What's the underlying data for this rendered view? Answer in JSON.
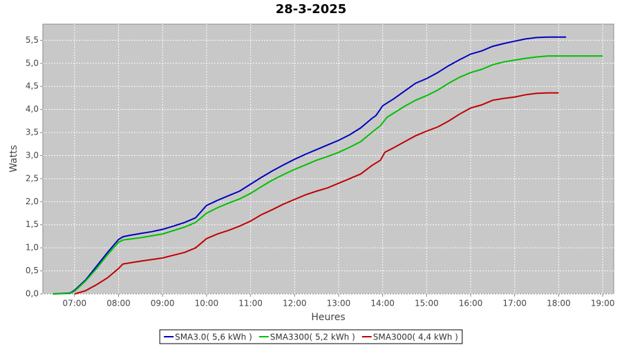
{
  "chart_data": {
    "type": "line",
    "title": "28-3-2025",
    "xlabel": "Heures",
    "ylabel": "Watts",
    "xlim": [
      6.28,
      19.25
    ],
    "ylim": [
      0,
      5.85
    ],
    "grid": true,
    "legend": "bottom",
    "xticks": [
      {
        "value": 7,
        "label": "07:00"
      },
      {
        "value": 8,
        "label": "08:00"
      },
      {
        "value": 9,
        "label": "09:00"
      },
      {
        "value": 10,
        "label": "10:00"
      },
      {
        "value": 11,
        "label": "11:00"
      },
      {
        "value": 12,
        "label": "12:00"
      },
      {
        "value": 13,
        "label": "13:00"
      },
      {
        "value": 14,
        "label": "14:00"
      },
      {
        "value": 15,
        "label": "15:00"
      },
      {
        "value": 16,
        "label": "16:00"
      },
      {
        "value": 17,
        "label": "17:00"
      },
      {
        "value": 18,
        "label": "18:00"
      },
      {
        "value": 19,
        "label": "19:00"
      }
    ],
    "yticks": [
      {
        "value": 0,
        "label": "0,0"
      },
      {
        "value": 0.5,
        "label": "0,5"
      },
      {
        "value": 1,
        "label": "1,0"
      },
      {
        "value": 1.5,
        "label": "1,5"
      },
      {
        "value": 2,
        "label": "2,0"
      },
      {
        "value": 2.5,
        "label": "2,5"
      },
      {
        "value": 3,
        "label": "3,0"
      },
      {
        "value": 3.5,
        "label": "3,5"
      },
      {
        "value": 4,
        "label": "4,0"
      },
      {
        "value": 4.5,
        "label": "4,5"
      },
      {
        "value": 5,
        "label": "5,0"
      },
      {
        "value": 5.5,
        "label": "5,5"
      }
    ],
    "series": [
      {
        "name": "SMA3.0( 5,6 kWh )",
        "color": "#0000c0",
        "x": [
          6.5,
          6.9,
          7.0,
          7.25,
          7.5,
          7.75,
          8.0,
          8.1,
          8.25,
          8.5,
          8.75,
          9.0,
          9.25,
          9.5,
          9.75,
          10.0,
          10.25,
          10.5,
          10.75,
          11.0,
          11.25,
          11.5,
          11.75,
          12.0,
          12.25,
          12.5,
          12.75,
          13.0,
          13.25,
          13.5,
          13.75,
          13.85,
          14.0,
          14.25,
          14.5,
          14.75,
          15.0,
          15.25,
          15.5,
          15.75,
          16.0,
          16.25,
          16.5,
          16.75,
          17.0,
          17.25,
          17.5,
          17.75,
          18.17
        ],
        "values": [
          0,
          0.02,
          0.08,
          0.3,
          0.6,
          0.9,
          1.18,
          1.24,
          1.27,
          1.31,
          1.35,
          1.4,
          1.47,
          1.55,
          1.65,
          1.92,
          2.03,
          2.13,
          2.23,
          2.38,
          2.53,
          2.67,
          2.8,
          2.92,
          3.03,
          3.13,
          3.23,
          3.33,
          3.45,
          3.6,
          3.8,
          3.87,
          4.08,
          4.23,
          4.4,
          4.57,
          4.67,
          4.8,
          4.95,
          5.08,
          5.2,
          5.27,
          5.37,
          5.43,
          5.48,
          5.53,
          5.56,
          5.57,
          5.57
        ]
      },
      {
        "name": "SMA3300( 5,2 kWh )",
        "color": "#00c000",
        "x": [
          6.5,
          6.9,
          7.0,
          7.25,
          7.5,
          7.75,
          8.0,
          8.1,
          8.5,
          9.0,
          9.5,
          9.75,
          10.0,
          10.25,
          10.5,
          10.75,
          11.0,
          11.25,
          11.5,
          11.75,
          12.0,
          12.25,
          12.5,
          12.75,
          13.0,
          13.25,
          13.5,
          13.75,
          13.95,
          14.1,
          14.25,
          14.5,
          14.75,
          15.0,
          15.25,
          15.5,
          15.75,
          16.0,
          16.25,
          16.5,
          16.75,
          17.0,
          17.25,
          17.5,
          17.75,
          18.0,
          18.5,
          19.0
        ],
        "values": [
          0,
          0.01,
          0.06,
          0.28,
          0.55,
          0.85,
          1.12,
          1.17,
          1.22,
          1.3,
          1.45,
          1.55,
          1.75,
          1.87,
          1.97,
          2.06,
          2.18,
          2.33,
          2.47,
          2.59,
          2.7,
          2.8,
          2.9,
          2.98,
          3.07,
          3.18,
          3.3,
          3.5,
          3.65,
          3.83,
          3.92,
          4.07,
          4.2,
          4.3,
          4.42,
          4.57,
          4.7,
          4.8,
          4.87,
          4.97,
          5.03,
          5.07,
          5.11,
          5.14,
          5.16,
          5.16,
          5.16,
          5.16
        ]
      },
      {
        "name": "SMA3000( 4,4 kWh )",
        "color": "#c00000",
        "x": [
          7.0,
          7.25,
          7.5,
          7.75,
          8.0,
          8.1,
          8.5,
          9.0,
          9.5,
          9.75,
          10.0,
          10.25,
          10.5,
          10.75,
          11.0,
          11.25,
          11.5,
          11.75,
          12.0,
          12.25,
          12.5,
          12.75,
          13.0,
          13.25,
          13.5,
          13.75,
          13.95,
          14.05,
          14.25,
          14.5,
          14.75,
          15.0,
          15.25,
          15.5,
          15.75,
          16.0,
          16.25,
          16.5,
          16.75,
          17.0,
          17.25,
          17.5,
          17.75,
          18.0
        ],
        "values": [
          0,
          0.07,
          0.2,
          0.35,
          0.55,
          0.65,
          0.71,
          0.78,
          0.9,
          1.0,
          1.2,
          1.3,
          1.38,
          1.47,
          1.58,
          1.72,
          1.83,
          1.95,
          2.05,
          2.15,
          2.23,
          2.3,
          2.4,
          2.5,
          2.6,
          2.78,
          2.9,
          3.07,
          3.17,
          3.3,
          3.43,
          3.53,
          3.62,
          3.75,
          3.9,
          4.03,
          4.1,
          4.2,
          4.24,
          4.27,
          4.32,
          4.35,
          4.36,
          4.36
        ]
      }
    ]
  }
}
